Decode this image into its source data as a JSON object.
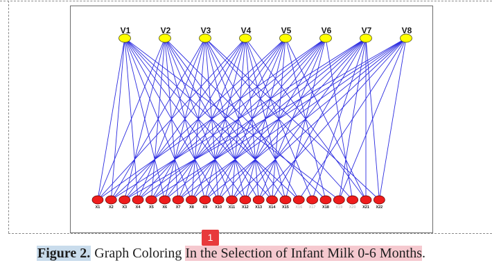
{
  "graph": {
    "top_nodes": [
      "V1",
      "V2",
      "V3",
      "V4",
      "V5",
      "V6",
      "V7",
      "V8"
    ],
    "bottom_nodes": [
      "X1",
      "X2",
      "X3",
      "X4",
      "X5",
      "X6",
      "X7",
      "X8",
      "X9",
      "X10",
      "X11",
      "X12",
      "X13",
      "X14",
      "X15",
      "X16",
      "X17",
      "X18",
      "X19",
      "X20",
      "X21",
      "X22"
    ],
    "edges": [
      [
        0,
        0
      ],
      [
        0,
        1
      ],
      [
        0,
        3
      ],
      [
        0,
        5
      ],
      [
        0,
        7
      ],
      [
        0,
        9
      ],
      [
        0,
        11
      ],
      [
        0,
        13
      ],
      [
        0,
        15
      ],
      [
        0,
        18
      ],
      [
        1,
        0
      ],
      [
        1,
        2
      ],
      [
        1,
        4
      ],
      [
        1,
        6
      ],
      [
        1,
        8
      ],
      [
        1,
        10
      ],
      [
        1,
        12
      ],
      [
        1,
        14
      ],
      [
        1,
        17
      ],
      [
        2,
        1
      ],
      [
        2,
        3
      ],
      [
        2,
        5
      ],
      [
        2,
        7
      ],
      [
        2,
        9
      ],
      [
        2,
        11
      ],
      [
        2,
        13
      ],
      [
        2,
        15
      ],
      [
        2,
        19
      ],
      [
        2,
        21
      ],
      [
        3,
        0
      ],
      [
        3,
        2
      ],
      [
        3,
        4
      ],
      [
        3,
        6
      ],
      [
        3,
        8
      ],
      [
        3,
        10
      ],
      [
        3,
        12
      ],
      [
        3,
        14
      ],
      [
        3,
        16
      ],
      [
        3,
        20
      ],
      [
        4,
        1
      ],
      [
        4,
        3
      ],
      [
        4,
        5
      ],
      [
        4,
        7
      ],
      [
        4,
        9
      ],
      [
        4,
        11
      ],
      [
        4,
        13
      ],
      [
        4,
        17
      ],
      [
        4,
        20
      ],
      [
        5,
        0
      ],
      [
        5,
        2
      ],
      [
        5,
        4
      ],
      [
        5,
        6
      ],
      [
        5,
        8
      ],
      [
        5,
        10
      ],
      [
        5,
        12
      ],
      [
        5,
        14
      ],
      [
        5,
        19
      ],
      [
        6,
        1
      ],
      [
        6,
        3
      ],
      [
        6,
        5
      ],
      [
        6,
        7
      ],
      [
        6,
        9
      ],
      [
        6,
        11
      ],
      [
        6,
        13
      ],
      [
        6,
        16
      ],
      [
        6,
        18
      ],
      [
        6,
        20
      ],
      [
        6,
        21
      ],
      [
        7,
        2
      ],
      [
        7,
        4
      ],
      [
        7,
        6
      ],
      [
        7,
        8
      ],
      [
        7,
        10
      ],
      [
        7,
        12
      ],
      [
        7,
        15
      ],
      [
        7,
        18
      ],
      [
        7,
        21
      ]
    ],
    "colors": {
      "top_node_fill": "#ffff00",
      "bottom_node_fill": "#ee1c1c",
      "edge_stroke": "#2a2ae0",
      "faded_label": "#c4c4c4"
    },
    "faded_labels": [
      "X16",
      "X17",
      "X19",
      "X20"
    ]
  },
  "caption": {
    "label": "Figure 2.",
    "text_plain": "Graph Coloring",
    "text_highlight": "In the Selection of Infant Milk 0-6 Months",
    "end": "."
  },
  "annotation": {
    "badge": "1",
    "badge_color": "#e8393b"
  }
}
